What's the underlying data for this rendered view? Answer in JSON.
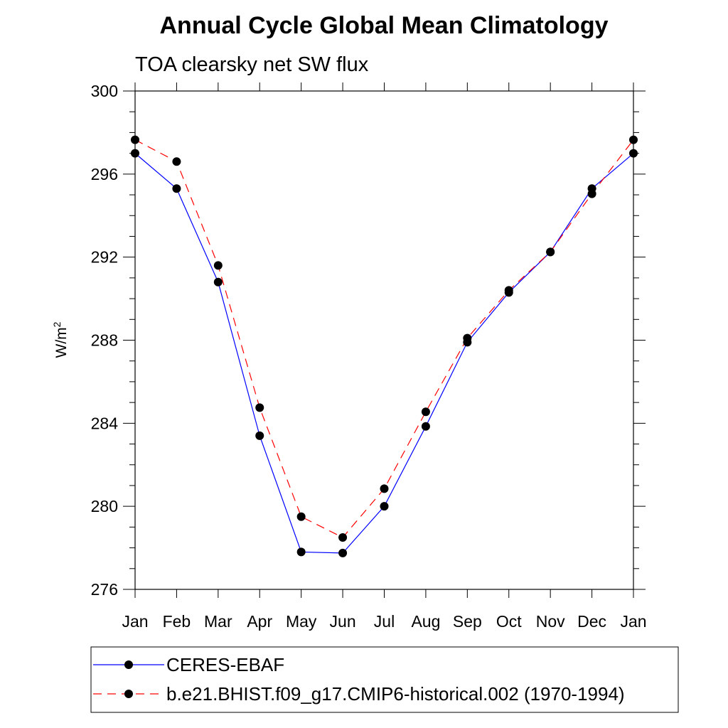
{
  "chart_data": {
    "type": "line",
    "title": "Annual Cycle Global Mean Climatology",
    "subtitle": "TOA clearsky net SW flux",
    "ylabel": "W/m",
    "ylabel_superscript": "2",
    "xlabel": "",
    "categories": [
      "Jan",
      "Feb",
      "Mar",
      "Apr",
      "May",
      "Jun",
      "Jul",
      "Aug",
      "Sep",
      "Oct",
      "Nov",
      "Dec",
      "Jan"
    ],
    "ylim": [
      276,
      300
    ],
    "yticks": [
      276,
      280,
      284,
      288,
      292,
      296,
      300
    ],
    "grid": false,
    "legend_position": "bottom",
    "series": [
      {
        "name": "CERES-EBAF",
        "color": "#0000ff",
        "line_style": "solid",
        "marker": "filled-circle",
        "values": [
          297.0,
          295.3,
          290.8,
          283.4,
          277.8,
          277.75,
          280.0,
          283.85,
          287.9,
          290.3,
          292.25,
          295.3,
          297.0
        ]
      },
      {
        "name": "b.e21.BHIST.f09_g17.CMIP6-historical.002 (1970-1994)",
        "color": "#ff0000",
        "line_style": "dashed",
        "marker": "filled-circle",
        "values": [
          297.65,
          296.6,
          291.6,
          284.75,
          279.5,
          278.5,
          280.85,
          284.55,
          288.1,
          290.4,
          292.25,
          295.05,
          297.65
        ]
      }
    ]
  }
}
